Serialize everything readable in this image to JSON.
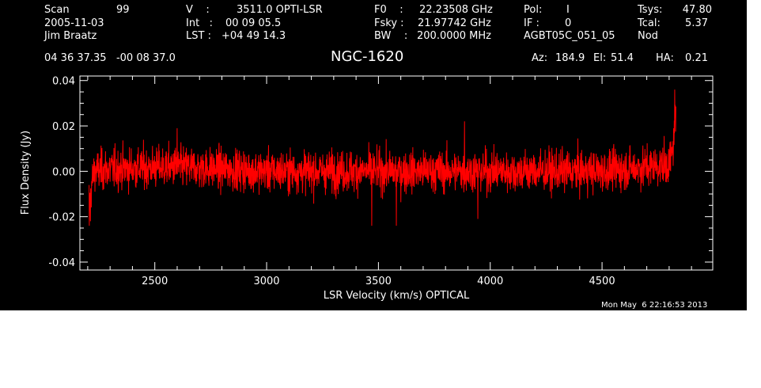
{
  "header": {
    "scan_label": "Scan",
    "scan_value": "99",
    "date": "2005-11-03",
    "observer": "Jim Braatz",
    "v_label": "V    :",
    "v_value": "3511.0 OPTI-LSR",
    "int_label": "Int   :",
    "int_value": "00 09 05.5",
    "lst_label": "LST :",
    "lst_value": "+04 49 14.3",
    "f0_label": "F0    :",
    "f0_value": "22.23508 GHz",
    "fsky_label": "Fsky :",
    "fsky_value": "21.97742 GHz",
    "bw_label": "BW    :",
    "bw_value": "200.0000 MHz",
    "pol_label": "Pol:",
    "pol_value": "I",
    "if_label": "IF :",
    "if_value": "0",
    "project": "AGBT05C_051_05",
    "tsys_label": "Tsys:",
    "tsys_value": "47.80",
    "tcal_label": "Tcal:",
    "tcal_value": "5.37",
    "mode": "Nod",
    "coords": "04 36 37.35   -00 08 37.0",
    "source": "NGC-1620",
    "az_label": "Az:",
    "az_value": "184.9",
    "el_label": "El:",
    "el_value": "51.4",
    "ha_label": "HA:",
    "ha_value": "0.21"
  },
  "footer": {
    "timestamp": "Mon May  6 22:16:53 2013"
  },
  "colors": {
    "background": "#000000",
    "foreground": "#ffffff",
    "trace": "#ff0000"
  },
  "chart_data": {
    "type": "line",
    "xlabel": "LSR Velocity (km/s) OPTICAL",
    "ylabel": "Flux Density (Jy)",
    "xlim": [
      2165,
      4995
    ],
    "ylim": [
      -0.0435,
      0.042
    ],
    "x_ticks": [
      2500,
      3000,
      3500,
      4000,
      4500
    ],
    "x_tick_labels": [
      "2500",
      "3000",
      "3500",
      "4000",
      "4500"
    ],
    "y_ticks": [
      -0.04,
      -0.02,
      0.0,
      0.02,
      0.04
    ],
    "y_tick_labels": [
      "-0.04",
      "-0.02",
      "0.00",
      "0.02",
      "0.04"
    ],
    "x_minor_step": 100,
    "y_minor_step": 0.005,
    "grid": false,
    "series": [
      {
        "color": "#ff0000",
        "x_range": [
          2206,
          4830
        ],
        "noise_rms": 0.0045,
        "x": [
          2210,
          2215,
          2220,
          2230,
          2300,
          2600,
          3000,
          3500,
          4000,
          4500,
          4800,
          4815,
          4825,
          4830
        ],
        "values": [
          -0.012,
          -0.008,
          -0.004,
          0.0,
          0.001,
          0.002,
          0.0,
          0.0,
          0.0,
          0.0,
          0.003,
          0.008,
          0.02,
          0.022
        ],
        "extremes": [
          {
            "x": 2207,
            "y": -0.024
          },
          {
            "x": 2212,
            "y": -0.022
          },
          {
            "x": 2600,
            "y": 0.019
          },
          {
            "x": 3470,
            "y": -0.024
          },
          {
            "x": 3580,
            "y": -0.024
          },
          {
            "x": 3885,
            "y": 0.022
          },
          {
            "x": 3945,
            "y": -0.021
          },
          {
            "x": 4825,
            "y": 0.036
          }
        ]
      }
    ]
  }
}
